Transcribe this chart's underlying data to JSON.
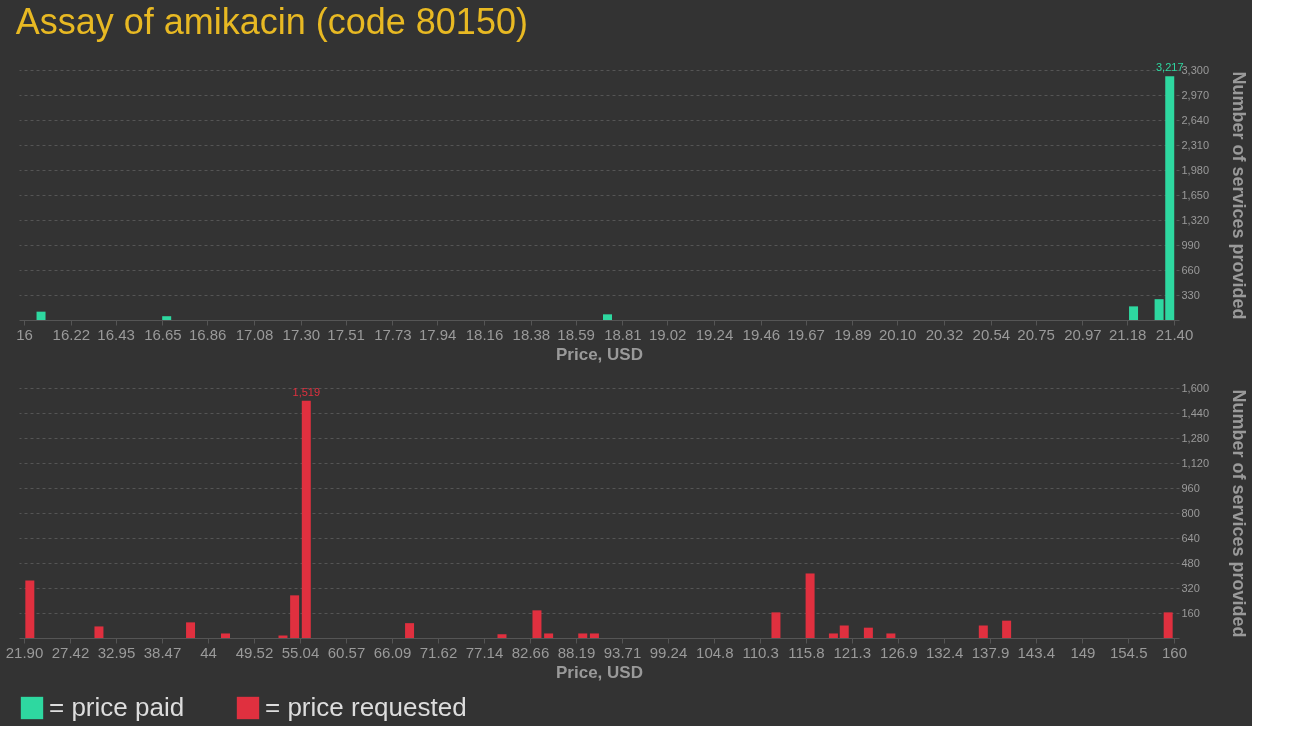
{
  "chart_data": [
    {
      "type": "bar",
      "title": "Assay of amikacin (code 80150)",
      "xlabel": "Price, USD",
      "ylabel": "Number of services provided",
      "x": [
        16.08,
        16.67,
        18.74,
        21.21,
        21.33,
        21.38
      ],
      "series": [
        {
          "name": "= price paid",
          "color": "#2ed8a0",
          "values": [
            110,
            50,
            75,
            180,
            275,
            3217
          ],
          "value_labels": [
            null,
            null,
            null,
            null,
            null,
            "3,217"
          ]
        }
      ],
      "xlim": [
        16,
        21.4
      ],
      "xticks": [
        16,
        16.22,
        16.43,
        16.65,
        16.86,
        17.08,
        {
          "value": 17.3,
          "label": "17.30"
        },
        17.51,
        17.73,
        17.94,
        18.16,
        18.38,
        18.59,
        18.81,
        19.02,
        19.24,
        19.46,
        19.67,
        19.89,
        {
          "value": 20.1,
          "label": "20.10"
        },
        20.32,
        20.54,
        20.75,
        20.97,
        21.18,
        {
          "value": 21.4,
          "label": "21.40"
        }
      ],
      "ylim": [
        0,
        3300
      ],
      "yticks": [
        330,
        660,
        990,
        {
          "value": 1320,
          "label": "1,320"
        },
        {
          "value": 1650,
          "label": "1,650"
        },
        {
          "value": 1980,
          "label": "1,980"
        },
        {
          "value": 2310,
          "label": "2,310"
        },
        {
          "value": 2640,
          "label": "2,640"
        },
        {
          "value": 2970,
          "label": "2,970"
        },
        {
          "value": 3300,
          "label": "3,300"
        }
      ],
      "grid": "y",
      "legend": "bottom left"
    },
    {
      "type": "bar",
      "xlabel": "Price, USD",
      "ylabel": "Number of services provided",
      "x": [
        22.6,
        30.9,
        41.9,
        46.1,
        53.0,
        54.4,
        55.8,
        68.2,
        79.3,
        83.5,
        84.9,
        89.0,
        90.4,
        112.2,
        116.3,
        119.1,
        120.4,
        123.3,
        126.0,
        137.1,
        139.9,
        159.3
      ],
      "series": [
        {
          "name": "= price requested",
          "color": "#e0303f",
          "values": [
            368,
            74,
            100,
            29,
            16,
            273,
            1519,
            95,
            24,
            177,
            29,
            29,
            29,
            164,
            413,
            29,
            80,
            66,
            29,
            80,
            111,
            164
          ],
          "value_labels": [
            null,
            null,
            null,
            null,
            null,
            null,
            "1,519",
            null,
            null,
            null,
            null,
            null,
            null,
            null,
            null,
            null,
            null,
            null,
            null,
            null,
            null,
            null
          ]
        }
      ],
      "xlim": [
        21.9,
        160
      ],
      "xticks": [
        {
          "value": 21.9,
          "label": "21.90"
        },
        27.42,
        32.95,
        38.47,
        44,
        49.52,
        55.04,
        60.57,
        66.09,
        71.62,
        77.14,
        82.66,
        88.19,
        93.71,
        99.24,
        104.8,
        110.3,
        115.8,
        121.3,
        126.9,
        132.4,
        137.9,
        143.4,
        149,
        154.5,
        160
      ],
      "ylim": [
        0,
        1600
      ],
      "yticks": [
        160,
        320,
        480,
        640,
        800,
        960,
        {
          "value": 1120,
          "label": "1,120"
        },
        {
          "value": 1280,
          "label": "1,280"
        },
        {
          "value": 1440,
          "label": "1,440"
        },
        {
          "value": 1600,
          "label": "1,600"
        }
      ],
      "grid": "y",
      "legend": "bottom left"
    }
  ]
}
